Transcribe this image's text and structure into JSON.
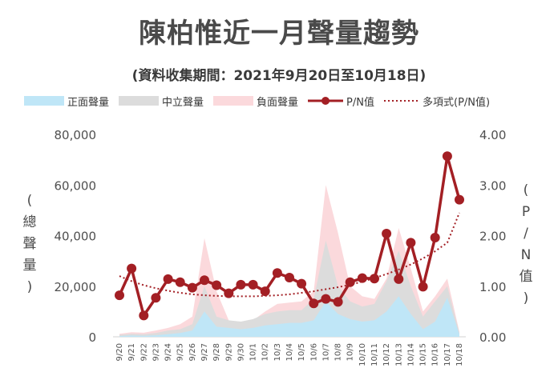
{
  "title": "陳柏惟近一月聲量趨勢",
  "subtitle": "(資料收集期間：2021年9月20日至10月18日)",
  "legend": {
    "positive": "正面聲量",
    "neutral": "中立聲量",
    "negative": "負面聲量",
    "pn": "P/N值",
    "trend": "多項式(P/N值)"
  },
  "ylabel_left_chars": [
    "(",
    "總",
    "聲",
    "量",
    ")"
  ],
  "ylabel_right_chars": [
    "(",
    "P",
    "/",
    "N",
    "值",
    ")"
  ],
  "colors": {
    "positive": "#bfe6f7",
    "neutral": "#dcdcdc",
    "negative": "#fbd9dc",
    "pn": "#a31f24",
    "trend": "#a31f24"
  },
  "chart_data": {
    "type": "area",
    "x": [
      "9/20",
      "9/21",
      "9/22",
      "9/23",
      "9/24",
      "9/25",
      "9/26",
      "9/27",
      "9/28",
      "9/29",
      "9/30",
      "10/1",
      "10/2",
      "10/3",
      "10/4",
      "10/5",
      "10/6",
      "10/7",
      "10/8",
      "10/9",
      "10/10",
      "10/11",
      "10/12",
      "10/13",
      "10/14",
      "10/15",
      "10/16",
      "10/17",
      "10/18"
    ],
    "left_axis": {
      "ylim": [
        0,
        80000
      ],
      "ticks": [
        "0",
        "20,000",
        "40,000",
        "60,000",
        "80,000"
      ]
    },
    "right_axis": {
      "ylim": [
        0,
        4
      ],
      "ticks": [
        "0.00",
        "1.00",
        "2.00",
        "3.00",
        "4.00"
      ]
    },
    "series": [
      {
        "name": "正面聲量",
        "values": [
          300,
          500,
          400,
          600,
          1000,
          1500,
          2500,
          10000,
          4000,
          3500,
          3000,
          3500,
          4500,
          5000,
          5500,
          5500,
          6500,
          14000,
          9000,
          7000,
          6000,
          6500,
          10000,
          16000,
          9000,
          3000,
          6000,
          15500,
          1000
        ]
      },
      {
        "name": "中立聲量",
        "values": [
          800,
          1200,
          1000,
          1500,
          2500,
          3000,
          5000,
          20000,
          8000,
          6500,
          6000,
          7000,
          9000,
          10000,
          10500,
          10500,
          15000,
          38000,
          20000,
          14000,
          12000,
          13000,
          22000,
          34000,
          20000,
          8000,
          14000,
          20000,
          1500
        ]
      },
      {
        "name": "負面聲量",
        "values": [
          1200,
          1800,
          1600,
          2500,
          3500,
          5000,
          8000,
          39000,
          18000,
          6500,
          5000,
          6500,
          10000,
          13000,
          13500,
          14000,
          18000,
          60000,
          41000,
          20000,
          16000,
          15000,
          23000,
          43000,
          27000,
          10000,
          16000,
          23000,
          2000
        ]
      },
      {
        "name": "P/N值",
        "axis": "right",
        "values": [
          0.82,
          1.35,
          0.42,
          0.77,
          1.14,
          1.08,
          0.97,
          1.12,
          1.02,
          0.86,
          1.03,
          1.03,
          0.9,
          1.26,
          1.17,
          1.05,
          0.66,
          0.75,
          0.69,
          1.08,
          1.16,
          1.15,
          2.04,
          1.14,
          1.86,
          0.99,
          1.96,
          3.57,
          2.71
        ]
      },
      {
        "name": "多項式(P/N值)",
        "axis": "right",
        "values": [
          1.2,
          1.1,
          1.02,
          0.96,
          0.91,
          0.87,
          0.84,
          0.82,
          0.81,
          0.8,
          0.8,
          0.8,
          0.81,
          0.82,
          0.84,
          0.87,
          0.9,
          0.94,
          0.98,
          1.03,
          1.09,
          1.16,
          1.24,
          1.33,
          1.43,
          1.55,
          1.69,
          1.86,
          2.45
        ]
      }
    ]
  }
}
